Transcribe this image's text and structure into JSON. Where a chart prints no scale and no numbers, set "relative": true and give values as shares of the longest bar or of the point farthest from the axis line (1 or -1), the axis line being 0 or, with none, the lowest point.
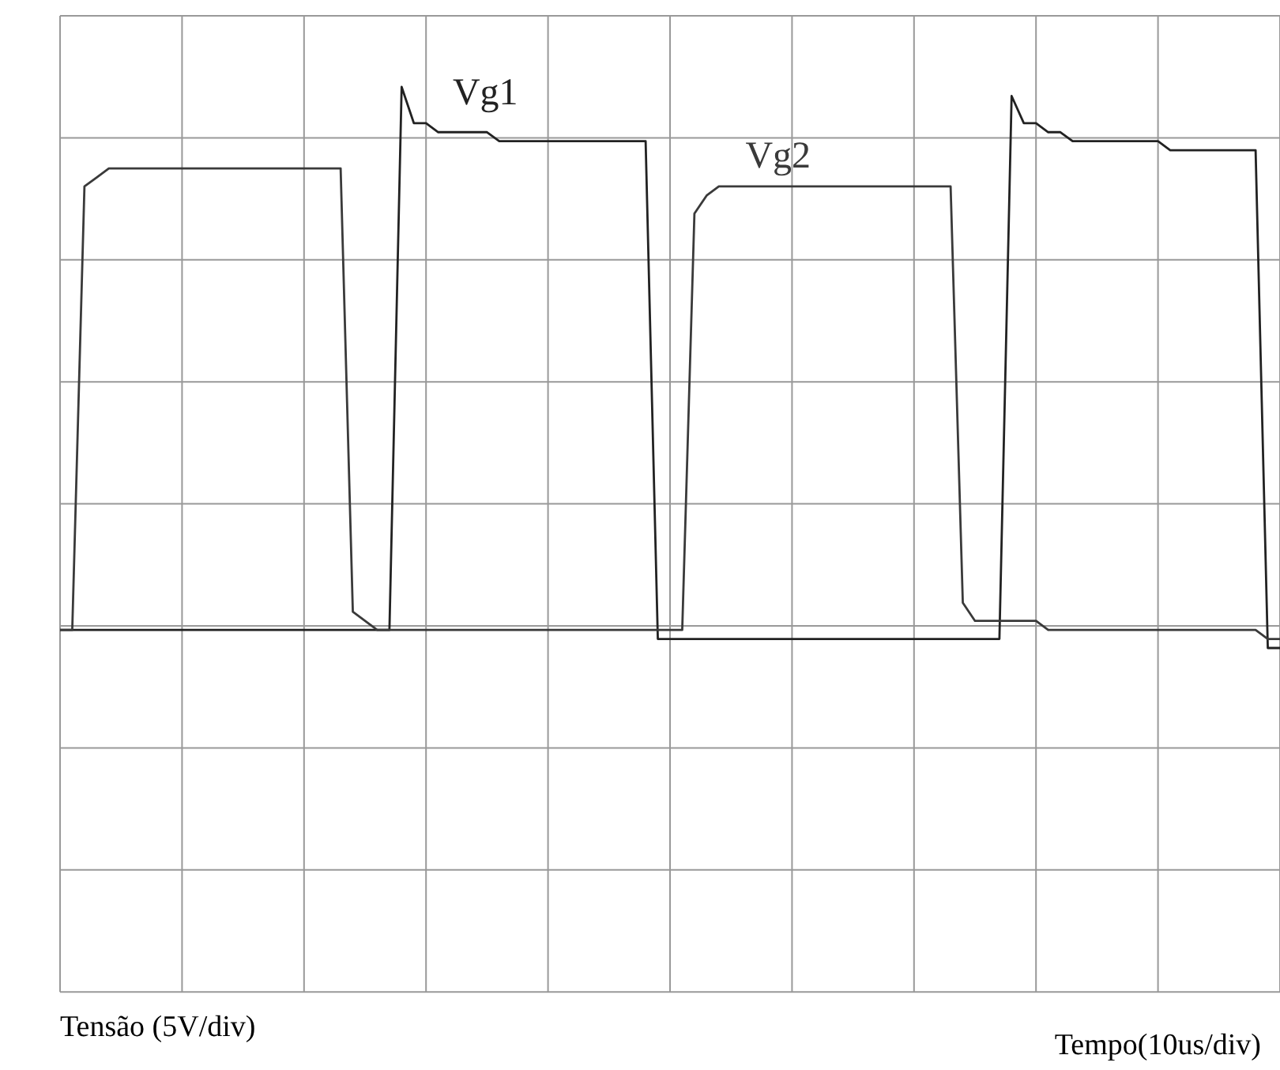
{
  "chart_data": {
    "type": "line",
    "relative": true,
    "annotations": [
      "Tensão (5V/div)",
      "Tempo(10us/div)"
    ],
    "categories": [
      null,
      null,
      null,
      null,
      null,
      null,
      null,
      null,
      null,
      null,
      null,
      null,
      null,
      null,
      null,
      null,
      null,
      null,
      null,
      null,
      null,
      null,
      null,
      null,
      null,
      null,
      null,
      null,
      null,
      null,
      null,
      null,
      null,
      null,
      null,
      null,
      null,
      null,
      null,
      null,
      null,
      null,
      null,
      null,
      null,
      null,
      null,
      null,
      null,
      null,
      null,
      null,
      null,
      null,
      null,
      null,
      null,
      null,
      null,
      null,
      null,
      null,
      null,
      null,
      null,
      null,
      null,
      null,
      null,
      null,
      null,
      null,
      null,
      null,
      null,
      null,
      null,
      null,
      null,
      null,
      null,
      null,
      null,
      null,
      null,
      null,
      null,
      null,
      null,
      null,
      null,
      null,
      null,
      null,
      null,
      null,
      null,
      null,
      null,
      null,
      null
    ],
    "grid": true,
    "legend": false,
    "marker": "none",
    "line_style": "solid",
    "series": [
      {
        "name": "Vg1",
        "color": "#222222",
        "values": [
          0.4,
          0.4,
          0.4,
          0.4,
          0.4,
          0.4,
          0.4,
          0.4,
          0.4,
          0.4,
          0.4,
          0.4,
          0.4,
          0.4,
          0.4,
          0.4,
          0.4,
          0.4,
          0.4,
          0.4,
          0.4,
          0.4,
          0.4,
          0.4,
          0.4,
          0.4,
          0.4,
          0.4,
          1.0,
          0.96,
          0.96,
          0.95,
          0.95,
          0.95,
          0.95,
          0.95,
          0.94,
          0.94,
          0.94,
          0.94,
          0.94,
          0.94,
          0.94,
          0.94,
          0.94,
          0.94,
          0.94,
          0.94,
          0.94,
          0.39,
          0.39,
          0.39,
          0.39,
          0.39,
          0.39,
          0.39,
          0.39,
          0.39,
          0.39,
          0.39,
          0.39,
          0.39,
          0.39,
          0.39,
          0.39,
          0.39,
          0.39,
          0.39,
          0.39,
          0.39,
          0.39,
          0.39,
          0.39,
          0.39,
          0.39,
          0.39,
          0.39,
          0.39,
          0.99,
          0.96,
          0.96,
          0.95,
          0.95,
          0.94,
          0.94,
          0.94,
          0.94,
          0.94,
          0.94,
          0.94,
          0.94,
          0.93,
          0.93,
          0.93,
          0.93,
          0.93,
          0.93,
          0.93,
          0.93,
          0.38,
          0.38
        ]
      },
      {
        "name": "Vg2",
        "color": "#3a3a3a",
        "values": [
          0.4,
          0.4,
          0.89,
          0.9,
          0.91,
          0.91,
          0.91,
          0.91,
          0.91,
          0.91,
          0.91,
          0.91,
          0.91,
          0.91,
          0.91,
          0.91,
          0.91,
          0.91,
          0.91,
          0.91,
          0.91,
          0.91,
          0.91,
          0.91,
          0.42,
          0.41,
          0.4,
          0.4,
          0.4,
          0.4,
          0.4,
          0.4,
          0.4,
          0.4,
          0.4,
          0.4,
          0.4,
          0.4,
          0.4,
          0.4,
          0.4,
          0.4,
          0.4,
          0.4,
          0.4,
          0.4,
          0.4,
          0.4,
          0.4,
          0.4,
          0.4,
          0.4,
          0.86,
          0.88,
          0.89,
          0.89,
          0.89,
          0.89,
          0.89,
          0.89,
          0.89,
          0.89,
          0.89,
          0.89,
          0.89,
          0.89,
          0.89,
          0.89,
          0.89,
          0.89,
          0.89,
          0.89,
          0.89,
          0.89,
          0.43,
          0.41,
          0.41,
          0.41,
          0.41,
          0.41,
          0.41,
          0.4,
          0.4,
          0.4,
          0.4,
          0.4,
          0.4,
          0.4,
          0.4,
          0.4,
          0.4,
          0.4,
          0.4,
          0.4,
          0.4,
          0.4,
          0.4,
          0.4,
          0.4,
          0.39,
          0.39
        ]
      }
    ]
  }
}
